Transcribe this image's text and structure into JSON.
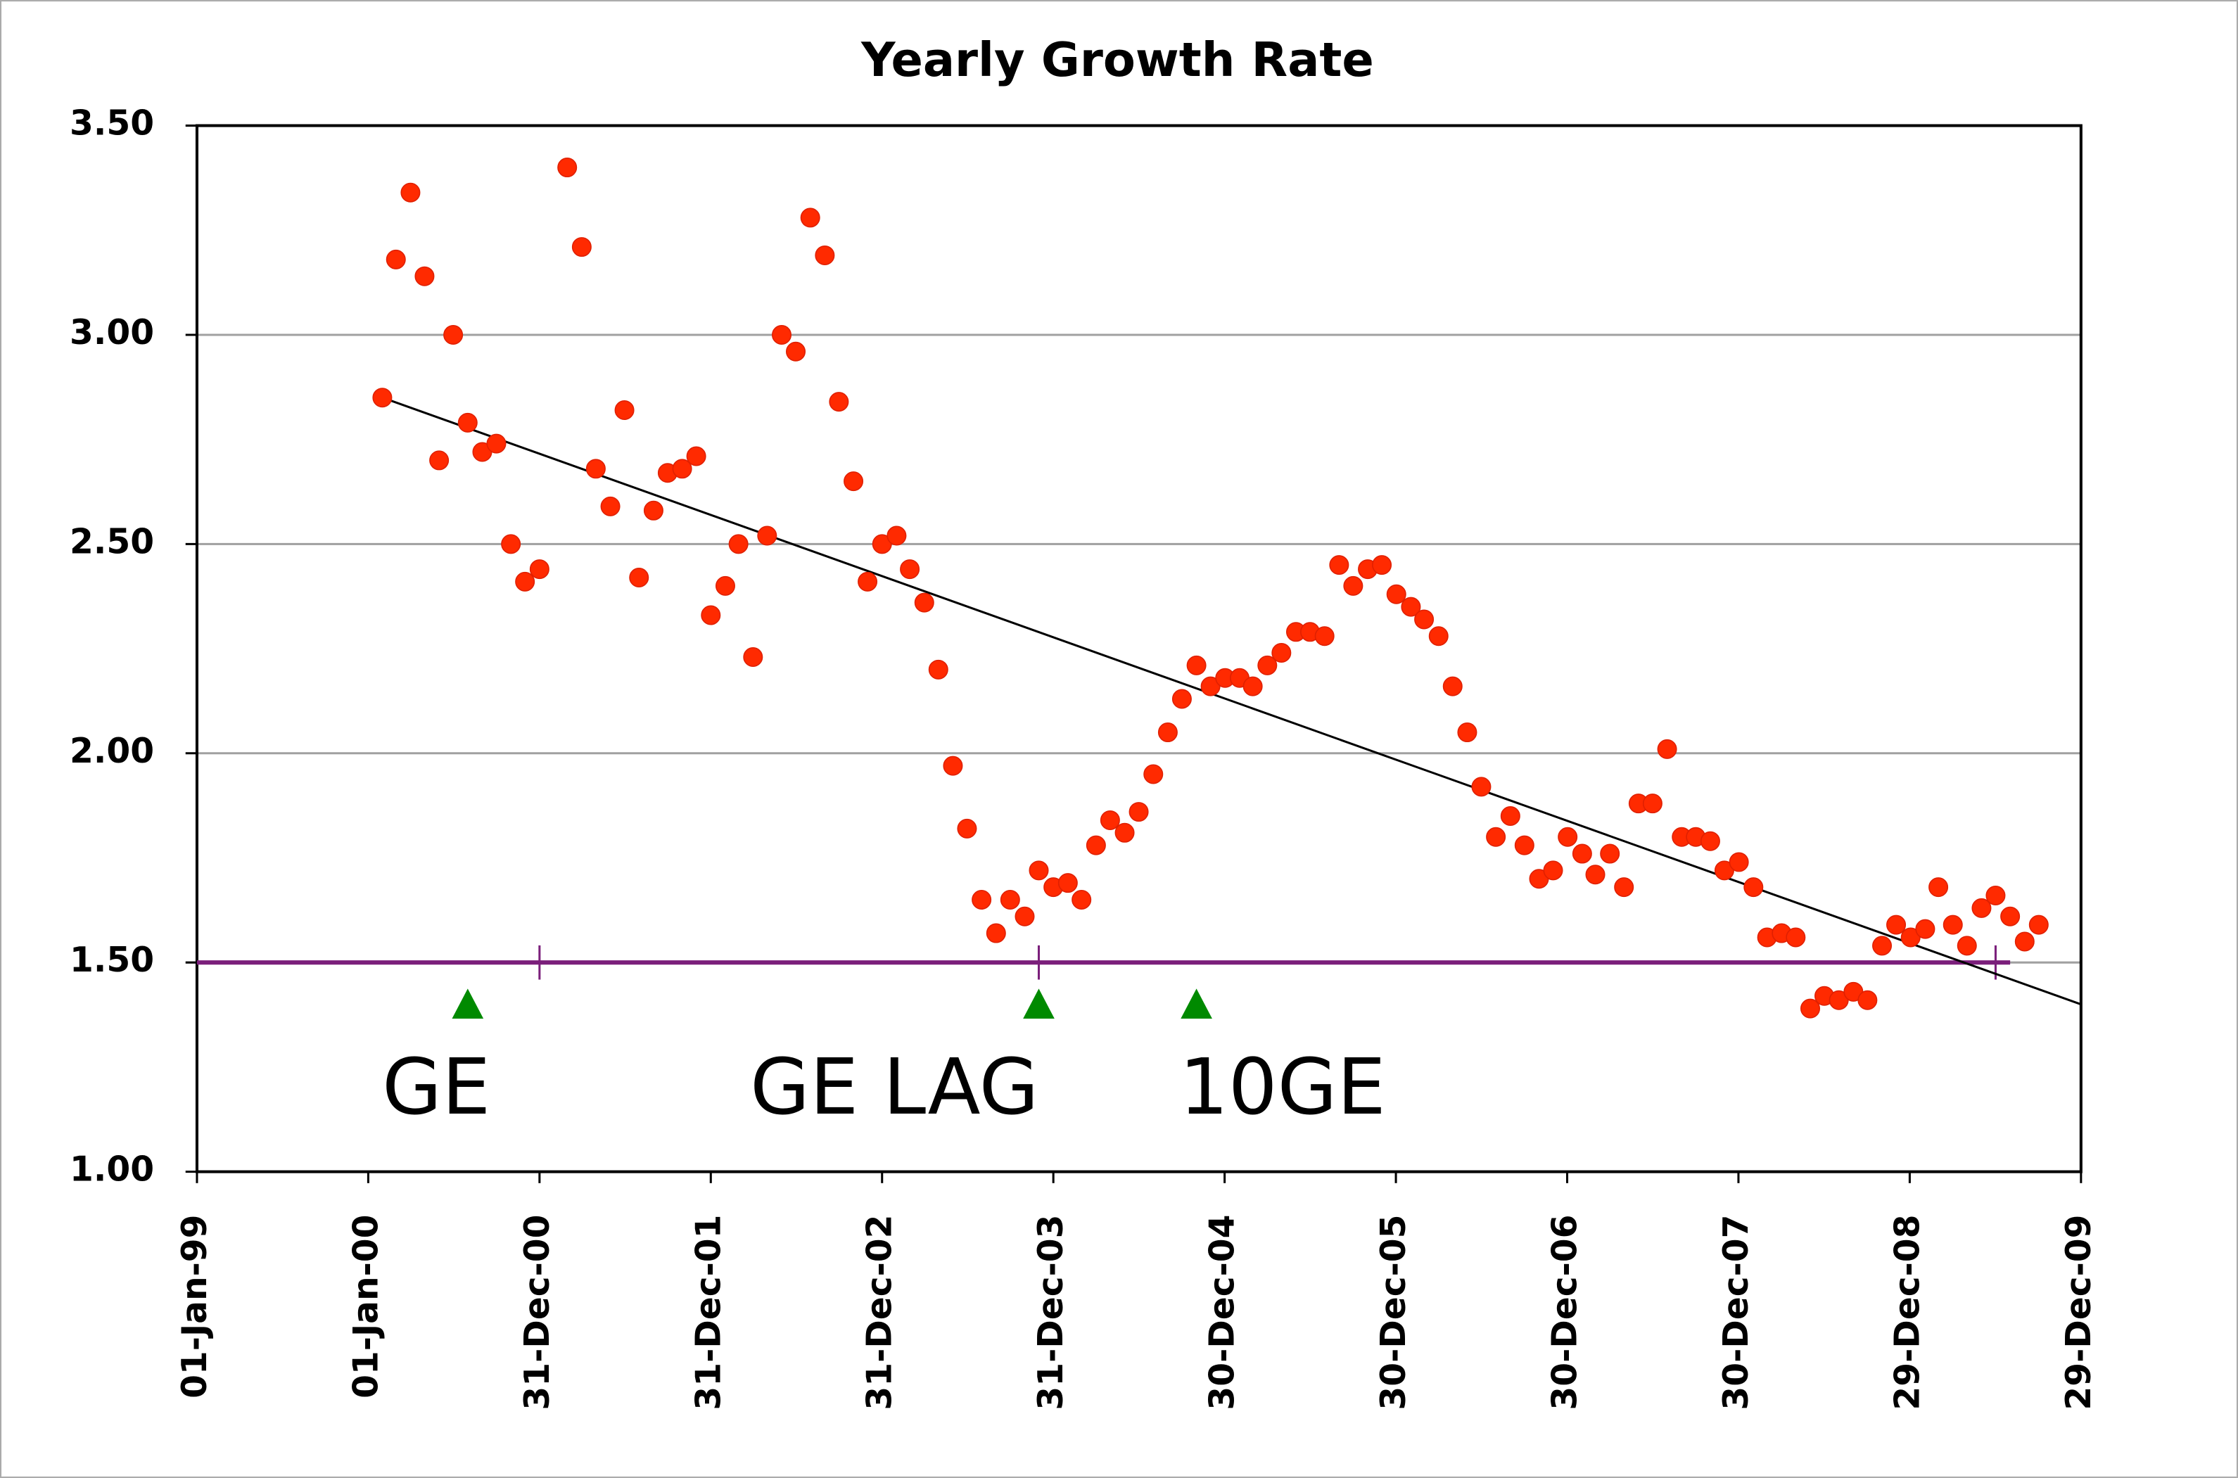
{
  "chart_data": {
    "type": "scatter",
    "title": "Yearly Growth Rate",
    "x": [
      "2000-01-31",
      "2000-02-29",
      "2000-03-31",
      "2000-04-30",
      "2000-05-31",
      "2000-06-30",
      "2000-07-31",
      "2000-08-31",
      "2000-09-30",
      "2000-10-31",
      "2000-11-30",
      "2000-12-31",
      "2001-02-28",
      "2001-03-31",
      "2001-04-30",
      "2001-05-31",
      "2001-06-30",
      "2001-07-31",
      "2001-08-31",
      "2001-09-30",
      "2001-10-31",
      "2001-11-30",
      "2001-12-31",
      "2002-01-31",
      "2002-02-28",
      "2002-03-31",
      "2002-04-30",
      "2002-05-31",
      "2002-06-30",
      "2002-07-31",
      "2002-08-31",
      "2002-09-30",
      "2002-10-31",
      "2002-11-30",
      "2002-12-31",
      "2003-01-31",
      "2003-02-28",
      "2003-03-31",
      "2003-04-30",
      "2003-05-31",
      "2003-06-30",
      "2003-07-31",
      "2003-08-31",
      "2003-09-30",
      "2003-10-31",
      "2003-11-30",
      "2003-12-31",
      "2004-01-31",
      "2004-02-29",
      "2004-03-31",
      "2004-04-30",
      "2004-05-31",
      "2004-06-30",
      "2004-07-31",
      "2004-08-31",
      "2004-09-30",
      "2004-10-31",
      "2004-11-30",
      "2004-12-31",
      "2005-01-31",
      "2005-02-28",
      "2005-03-31",
      "2005-04-30",
      "2005-05-31",
      "2005-06-30",
      "2005-07-31",
      "2005-08-31",
      "2005-09-30",
      "2005-10-31",
      "2005-11-30",
      "2005-12-31",
      "2006-01-31",
      "2006-02-28",
      "2006-03-31",
      "2006-04-30",
      "2006-05-31",
      "2006-06-30",
      "2006-07-31",
      "2006-08-31",
      "2006-09-30",
      "2006-10-31",
      "2006-11-30",
      "2006-12-31",
      "2007-01-31",
      "2007-02-28",
      "2007-03-31",
      "2007-04-30",
      "2007-05-31",
      "2007-06-30",
      "2007-07-31",
      "2007-08-31",
      "2007-09-30",
      "2007-10-31",
      "2007-11-30",
      "2007-12-31",
      "2008-01-31",
      "2008-02-29",
      "2008-03-31",
      "2008-04-30",
      "2008-05-31",
      "2008-06-30",
      "2008-07-31",
      "2008-08-31",
      "2008-09-30",
      "2008-10-31",
      "2008-11-30",
      "2008-12-31",
      "2009-01-31",
      "2009-02-28",
      "2009-03-31",
      "2009-04-30",
      "2009-05-31",
      "2009-06-30",
      "2009-07-31",
      "2009-08-31",
      "2009-09-30"
    ],
    "values": [
      2.85,
      3.18,
      3.34,
      3.14,
      2.7,
      3.0,
      2.79,
      2.72,
      2.74,
      2.5,
      2.41,
      2.44,
      3.4,
      3.21,
      2.68,
      2.59,
      2.82,
      2.42,
      2.58,
      2.67,
      2.68,
      2.71,
      2.33,
      2.4,
      2.5,
      2.23,
      2.52,
      3.0,
      2.96,
      3.28,
      3.19,
      2.84,
      2.65,
      2.41,
      2.5,
      2.52,
      2.44,
      2.36,
      2.2,
      1.97,
      1.82,
      1.65,
      1.57,
      1.65,
      1.61,
      1.72,
      1.68,
      1.69,
      1.65,
      1.78,
      1.84,
      1.81,
      1.86,
      1.95,
      2.05,
      2.13,
      2.21,
      2.16,
      2.18,
      2.18,
      2.16,
      2.21,
      2.24,
      2.29,
      2.29,
      2.28,
      2.45,
      2.4,
      2.44,
      2.45,
      2.38,
      2.35,
      2.32,
      2.28,
      2.16,
      2.05,
      1.92,
      1.8,
      1.85,
      1.78,
      1.7,
      1.72,
      1.8,
      1.76,
      1.71,
      1.76,
      1.68,
      1.88,
      1.88,
      2.01,
      1.8,
      1.8,
      1.79,
      1.72,
      1.74,
      1.68,
      1.56,
      1.57,
      1.56,
      1.39,
      1.42,
      1.41,
      1.43,
      1.41,
      1.54,
      1.59,
      1.56,
      1.58,
      1.68,
      1.59,
      1.54,
      1.63,
      1.66,
      1.61,
      1.55,
      1.59
    ],
    "color": "#ff2a00",
    "trendline": {
      "x": [
        "2000-01-31",
        "2009-12-29"
      ],
      "values": [
        2.85,
        1.4
      ],
      "color": "#000000"
    },
    "reference_line": {
      "value": 1.5,
      "x": [
        "1999-01-01",
        "2009-07-31"
      ],
      "ticks": [
        "2000-12-31",
        "2003-11-30",
        "2009-06-30"
      ],
      "color": "#7b1f7b"
    },
    "markers": [
      {
        "x": "2000-07-31",
        "value": 1.4,
        "label": "GE"
      },
      {
        "x": "2003-11-30",
        "value": 1.4,
        "label": "GE LAG"
      },
      {
        "x": "2004-10-31",
        "value": 1.4,
        "label": "10GE"
      }
    ],
    "marker_color": "#008a00",
    "xlim": [
      "1999-01-01",
      "2009-12-29"
    ],
    "xticks": [
      {
        "value": "1999-01-01",
        "label": "01-Jan-99"
      },
      {
        "value": "2000-01-01",
        "label": "01-Jan-00"
      },
      {
        "value": "2000-12-31",
        "label": "31-Dec-00"
      },
      {
        "value": "2001-12-31",
        "label": "31-Dec-01"
      },
      {
        "value": "2002-12-31",
        "label": "31-Dec-02"
      },
      {
        "value": "2003-12-31",
        "label": "31-Dec-03"
      },
      {
        "value": "2004-12-30",
        "label": "30-Dec-04"
      },
      {
        "value": "2005-12-30",
        "label": "30-Dec-05"
      },
      {
        "value": "2006-12-30",
        "label": "30-Dec-06"
      },
      {
        "value": "2007-12-30",
        "label": "30-Dec-07"
      },
      {
        "value": "2008-12-29",
        "label": "29-Dec-08"
      },
      {
        "value": "2009-12-29",
        "label": "29-Dec-09"
      }
    ],
    "ylim": [
      1.0,
      3.5
    ],
    "yticks": [
      {
        "value": 1.0,
        "label": "1.00"
      },
      {
        "value": 1.5,
        "label": "1.50"
      },
      {
        "value": 2.0,
        "label": "2.00"
      },
      {
        "value": 2.5,
        "label": "2.50"
      },
      {
        "value": 3.0,
        "label": "3.00"
      },
      {
        "value": 3.5,
        "label": "3.50"
      }
    ],
    "grid": true
  }
}
